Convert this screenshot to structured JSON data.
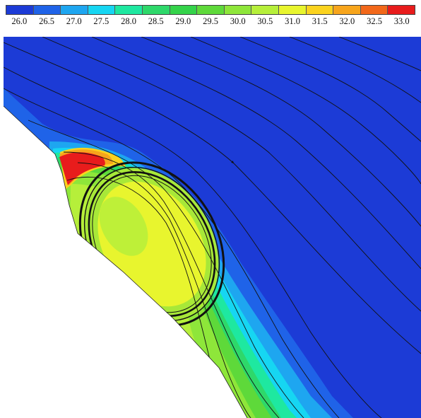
{
  "colorbar": {
    "ticks": [
      "26.0",
      "26.5",
      "27.0",
      "27.5",
      "28.0",
      "28.5",
      "29.0",
      "29.5",
      "30.0",
      "30.5",
      "31.0",
      "31.5",
      "32.0",
      "32.5",
      "33.0"
    ],
    "colors": [
      "#1c3bd6",
      "#1f63e8",
      "#1ea6f0",
      "#16d6f2",
      "#1ee8a0",
      "#2ed86a",
      "#34d34a",
      "#5ed93a",
      "#8ee63a",
      "#b6ef3a",
      "#e8f52e",
      "#fbd31e",
      "#f7a51c",
      "#f2681a",
      "#e81c1c"
    ]
  },
  "field": {
    "background_color": "#2044d8",
    "wall_color": "#ffffff"
  }
}
